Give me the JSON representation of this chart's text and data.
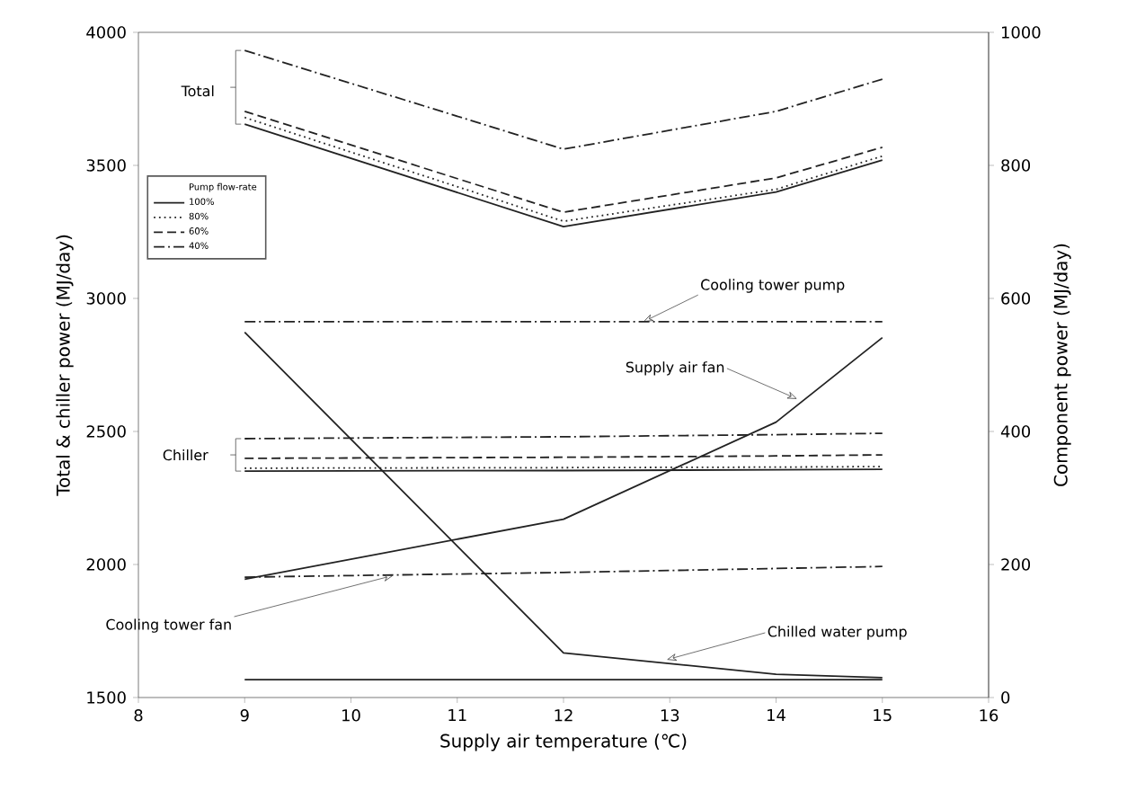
{
  "chart_data": {
    "type": "line",
    "xlabel": "Supply air temperature (℃)",
    "ylabel": "Total & chiller power (MJ/day)",
    "y2label": "Component power (MJ/day)",
    "legend_title": "Pump flow-rate",
    "legend": "top left",
    "grid": false,
    "marker": "none",
    "xlim": [
      8,
      16
    ],
    "xticks": [
      8,
      9,
      10,
      11,
      12,
      13,
      14,
      15,
      16
    ],
    "ylim": [
      1500,
      4000
    ],
    "yticks": [
      1500,
      2000,
      2500,
      3000,
      3500,
      4000
    ],
    "y2lim": [
      0,
      1000
    ],
    "y2ticks": [
      0,
      200,
      400,
      600,
      800,
      1000
    ],
    "series": [
      {
        "name": "100%",
        "color": "#222222",
        "line_style": "solid",
        "x": [
          9,
          12,
          14,
          15
        ],
        "values": [
          3655,
          3270,
          3400,
          3520
        ]
      },
      {
        "name": "80%",
        "color": "#222222",
        "line_style": "dotted",
        "x": [
          9,
          12,
          14,
          15
        ],
        "values": [
          3680,
          3290,
          3410,
          3535
        ]
      },
      {
        "name": "60%",
        "color": "#222222",
        "line_style": "dashed",
        "x": [
          9,
          12,
          14,
          15
        ],
        "values": [
          3703,
          3324,
          3453,
          3568
        ]
      },
      {
        "name": "40%",
        "color": "#222222",
        "line_style": "dashdot",
        "x": [
          9,
          12,
          14,
          15
        ],
        "values": [
          3932,
          3561,
          3703,
          3824
        ]
      },
      {
        "color": "#222222",
        "line_style": "solid",
        "x": [
          9,
          12,
          14,
          15
        ],
        "values": [
          2351,
          2353,
          2356,
          2358
        ]
      },
      {
        "color": "#222222",
        "line_style": "dotted",
        "x": [
          9,
          12,
          14,
          15
        ],
        "values": [
          2362,
          2364,
          2366,
          2368
        ]
      },
      {
        "color": "#222222",
        "line_style": "dashed",
        "x": [
          9,
          12,
          14,
          15
        ],
        "values": [
          2399,
          2403,
          2408,
          2412
        ]
      },
      {
        "color": "#222222",
        "line_style": "dashdot",
        "x": [
          9,
          12,
          14,
          15
        ],
        "values": [
          2473,
          2480,
          2488,
          2493
        ]
      },
      {
        "color": "#222222",
        "line_style": "dashdot",
        "axis": "y2",
        "x": [
          9,
          12,
          14,
          15
        ],
        "values": [
          565,
          565,
          565,
          565
        ]
      },
      {
        "color": "#222222",
        "line_style": "solid",
        "axis": "y2",
        "x": [
          9,
          12,
          14,
          15
        ],
        "values": [
          178,
          268,
          414,
          541
        ]
      },
      {
        "color": "#222222",
        "line_style": "solid",
        "axis": "y2",
        "x": [
          9,
          12,
          14,
          15
        ],
        "values": [
          549,
          67,
          35,
          30
        ]
      },
      {
        "color": "#222222",
        "line_style": "dashdot",
        "axis": "y2",
        "x": [
          9,
          12,
          14,
          15
        ],
        "values": [
          181,
          188,
          194,
          197
        ]
      },
      {
        "color": "#222222",
        "line_style": "solid",
        "axis": "y2",
        "x": [
          9,
          12,
          14,
          15
        ],
        "values": [
          27,
          27,
          27,
          27
        ]
      }
    ],
    "annotations": [
      "Total",
      {
        "text": "Cooling tower pump",
        "x": 12.75,
        "y": 2912
      },
      {
        "text": "Supply air fan",
        "x": 14.2,
        "y": 2622
      },
      "Chiller",
      {
        "text": "Cooling tower fan",
        "x": 10.4,
        "y": 1959
      },
      {
        "text": "Chilled water pump",
        "x": 12.97,
        "y": 1642
      }
    ]
  }
}
